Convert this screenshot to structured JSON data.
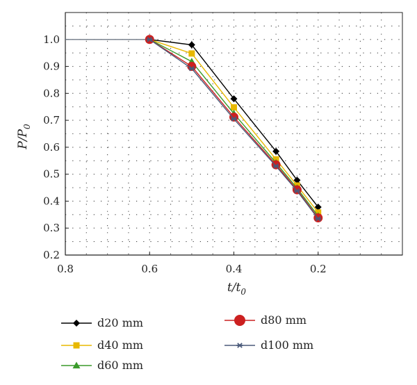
{
  "chart_data": {
    "type": "line",
    "xlabel": {
      "main": "t/t",
      "sub": "0"
    },
    "ylabel": {
      "main": "P/P",
      "sub": "0"
    },
    "xlim": [
      0.8,
      0.0
    ],
    "ylim": [
      0.2,
      1.1
    ],
    "x_ticks": [
      0.8,
      0.6,
      0.4,
      0.2
    ],
    "x_tick_labels": [
      "0.8",
      "0.6",
      "0.4",
      "0.2"
    ],
    "y_ticks": [
      0.2,
      0.3,
      0.4,
      0.5,
      0.6,
      0.7,
      0.8,
      0.9,
      1.0
    ],
    "y_tick_labels": [
      "0.2",
      "0.3",
      "0.4",
      "0.5",
      "0.6",
      "0.7",
      "0.8",
      "0.9",
      "1.0"
    ],
    "grid": "dotted",
    "baseline": {
      "x": [
        0.8,
        0.6
      ],
      "y": [
        1.0,
        1.0
      ],
      "color": "#6f7a86"
    },
    "legend_position": "bottom",
    "series": [
      {
        "name": "d20 mm",
        "color": "#000000",
        "marker": "diamond",
        "x": [
          0.6,
          0.5,
          0.4,
          0.3,
          0.25,
          0.2
        ],
        "y": [
          1.0,
          0.98,
          0.78,
          0.585,
          0.478,
          0.378
        ]
      },
      {
        "name": "d40 mm",
        "color": "#e8b800",
        "marker": "square",
        "x": [
          0.6,
          0.5,
          0.4,
          0.3,
          0.25,
          0.2
        ],
        "y": [
          1.0,
          0.948,
          0.748,
          0.555,
          0.458,
          0.358
        ]
      },
      {
        "name": "d60 mm",
        "color": "#3a9a2a",
        "marker": "triangle",
        "x": [
          0.6,
          0.5,
          0.4,
          0.3,
          0.25,
          0.2
        ],
        "y": [
          1.0,
          0.918,
          0.725,
          0.542,
          0.448,
          0.345
        ]
      },
      {
        "name": "d80 mm",
        "color": "#cc2020",
        "marker": "circle",
        "x": [
          0.6,
          0.5,
          0.4,
          0.3,
          0.25,
          0.2
        ],
        "y": [
          1.0,
          0.9,
          0.712,
          0.535,
          0.442,
          0.338
        ]
      },
      {
        "name": "d100 mm",
        "color": "#4a5a7a",
        "marker": "star",
        "x": [
          0.6,
          0.5,
          0.4,
          0.3,
          0.25,
          0.2
        ],
        "y": [
          1.0,
          0.892,
          0.705,
          0.53,
          0.438,
          0.335
        ]
      }
    ]
  }
}
